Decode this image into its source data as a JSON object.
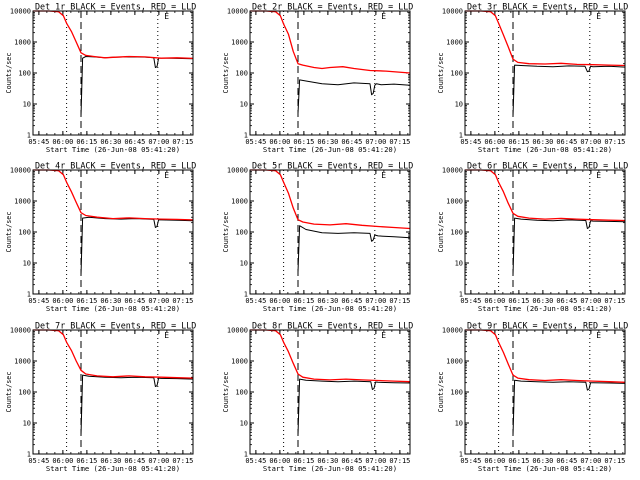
{
  "figure": {
    "x_tick_labels": [
      "05:45",
      "06:00",
      "06:15",
      "06:30",
      "06:45",
      "07:00",
      "07:15"
    ],
    "y_tick_labels": [
      "1",
      "10",
      "100",
      "1000",
      "10000"
    ],
    "xlabel": "Start Time (26-Jun-08 05:41:20)",
    "ylabel": "Counts/sec",
    "flag_label": "E",
    "colors": {
      "events": "#000000",
      "lld": "#ff0000",
      "axes": "#000000",
      "background": "#ffffff"
    }
  },
  "chart_data": [
    {
      "type": "line",
      "title": "Det 1r BLACK = Events, RED = LLD",
      "xlabel": "Start Time (26-Jun-08 05:41:20)",
      "ylabel": "Counts/sec",
      "x_unit": "minutes after 05:41:20",
      "xlim": [
        0,
        100
      ],
      "ylim": [
        1,
        10000
      ],
      "yscale": "log",
      "x_ticks": [
        3.67,
        18.67,
        33.67,
        48.67,
        63.67,
        78.67,
        93.67
      ],
      "vlines": [
        {
          "x": 21,
          "style": "dotted"
        },
        {
          "x": 30,
          "style": "dashed"
        },
        {
          "x": 78,
          "style": "dotted"
        }
      ],
      "flag_x": 82,
      "series": [
        {
          "name": "Events",
          "color": "#000000",
          "x": [
            30,
            31,
            33,
            38,
            45,
            50,
            60,
            70,
            75.5,
            76.5,
            77.5,
            78.5,
            80,
            90,
            100
          ],
          "y": [
            4,
            300,
            340,
            330,
            310,
            320,
            330,
            325,
            310,
            150,
            160,
            300,
            305,
            295,
            290
          ]
        },
        {
          "name": "LLD",
          "color": "#ff0000",
          "x": [
            0,
            10,
            16,
            19,
            21,
            24,
            27,
            30,
            33,
            38,
            45,
            50,
            60,
            70,
            80,
            90,
            100
          ],
          "y": [
            10000,
            10000,
            9500,
            7000,
            4000,
            2200,
            1000,
            450,
            370,
            340,
            310,
            320,
            340,
            330,
            300,
            310,
            295
          ]
        }
      ]
    },
    {
      "type": "line",
      "title": "Det 2r BLACK = Events, RED = LLD",
      "xlabel": "Start Time (26-Jun-08 05:41:20)",
      "ylabel": "Counts/sec",
      "x_unit": "minutes after 05:41:20",
      "xlim": [
        0,
        100
      ],
      "ylim": [
        1,
        10000
      ],
      "yscale": "log",
      "x_ticks": [
        3.67,
        18.67,
        33.67,
        48.67,
        63.67,
        78.67,
        93.67
      ],
      "vlines": [
        {
          "x": 21,
          "style": "dotted"
        },
        {
          "x": 30,
          "style": "dashed"
        },
        {
          "x": 78,
          "style": "dotted"
        }
      ],
      "flag_x": 82,
      "series": [
        {
          "name": "Events",
          "color": "#000000",
          "x": [
            30,
            31,
            35,
            45,
            55,
            65,
            75,
            76,
            77,
            78,
            79,
            82,
            90,
            100
          ],
          "y": [
            5,
            60,
            55,
            45,
            42,
            48,
            45,
            20,
            22,
            40,
            45,
            42,
            44,
            40
          ]
        },
        {
          "name": "LLD",
          "color": "#ff0000",
          "x": [
            0,
            10,
            16,
            19,
            21,
            24,
            27,
            30,
            33,
            40,
            45,
            50,
            58,
            65,
            75,
            85,
            100
          ],
          "y": [
            10000,
            10000,
            9500,
            7000,
            3800,
            1800,
            500,
            200,
            180,
            150,
            140,
            150,
            160,
            140,
            120,
            115,
            100
          ]
        }
      ]
    },
    {
      "type": "line",
      "title": "Det 3r BLACK = Events, RED = LLD",
      "xlabel": "Start Time (26-Jun-08 05:41:20)",
      "ylabel": "Counts/sec",
      "x_unit": "minutes after 05:41:20",
      "xlim": [
        0,
        100
      ],
      "ylim": [
        1,
        10000
      ],
      "yscale": "log",
      "x_ticks": [
        3.67,
        18.67,
        33.67,
        48.67,
        63.67,
        78.67,
        93.67
      ],
      "vlines": [
        {
          "x": 21,
          "style": "dotted"
        },
        {
          "x": 30,
          "style": "dashed"
        },
        {
          "x": 78,
          "style": "dotted"
        }
      ],
      "flag_x": 82,
      "series": [
        {
          "name": "Events",
          "color": "#000000",
          "x": [
            30,
            31,
            35,
            45,
            55,
            65,
            75,
            76.5,
            77.5,
            78.5,
            80,
            90,
            100
          ],
          "y": [
            4,
            180,
            175,
            165,
            160,
            170,
            165,
            110,
            115,
            165,
            160,
            165,
            155
          ]
        },
        {
          "name": "LLD",
          "color": "#ff0000",
          "x": [
            0,
            10,
            16,
            19,
            21,
            24,
            27,
            30,
            33,
            40,
            50,
            60,
            70,
            80,
            90,
            100
          ],
          "y": [
            10000,
            10000,
            9500,
            7000,
            4000,
            1700,
            700,
            280,
            220,
            200,
            195,
            205,
            190,
            185,
            180,
            175
          ]
        }
      ]
    },
    {
      "type": "line",
      "title": "Det 4r BLACK = Events, RED = LLD",
      "xlabel": "Start Time (26-Jun-08 05:41:20)",
      "ylabel": "Counts/sec",
      "x_unit": "minutes after 05:41:20",
      "xlim": [
        0,
        100
      ],
      "ylim": [
        1,
        10000
      ],
      "yscale": "log",
      "x_ticks": [
        3.67,
        18.67,
        33.67,
        48.67,
        63.67,
        78.67,
        93.67
      ],
      "vlines": [
        {
          "x": 21,
          "style": "dotted"
        },
        {
          "x": 30,
          "style": "dashed"
        },
        {
          "x": 78,
          "style": "dotted"
        }
      ],
      "flag_x": 82,
      "series": [
        {
          "name": "Events",
          "color": "#000000",
          "x": [
            30,
            31,
            35,
            45,
            55,
            65,
            75.5,
            76.5,
            77.5,
            78.5,
            80,
            90,
            100
          ],
          "y": [
            4,
            280,
            300,
            270,
            260,
            270,
            255,
            140,
            150,
            250,
            245,
            240,
            230
          ]
        },
        {
          "name": "LLD",
          "color": "#ff0000",
          "x": [
            0,
            10,
            16,
            19,
            21,
            24,
            27,
            30,
            33,
            40,
            50,
            60,
            70,
            80,
            90,
            100
          ],
          "y": [
            10000,
            10000,
            9500,
            7000,
            4000,
            2000,
            900,
            420,
            340,
            300,
            270,
            285,
            270,
            260,
            255,
            245
          ]
        }
      ]
    },
    {
      "type": "line",
      "title": "Det 5r BLACK = Events, RED = LLD",
      "xlabel": "Start Time (26-Jun-08 05:41:20)",
      "ylabel": "Counts/sec",
      "x_unit": "minutes after 05:41:20",
      "xlim": [
        0,
        100
      ],
      "ylim": [
        1,
        10000
      ],
      "yscale": "log",
      "x_ticks": [
        3.67,
        18.67,
        33.67,
        48.67,
        63.67,
        78.67,
        93.67
      ],
      "vlines": [
        {
          "x": 21,
          "style": "dotted"
        },
        {
          "x": 30,
          "style": "dashed"
        },
        {
          "x": 78,
          "style": "dotted"
        }
      ],
      "flag_x": 82,
      "series": [
        {
          "name": "Events",
          "color": "#000000",
          "x": [
            30,
            31,
            35,
            45,
            55,
            65,
            75,
            76,
            77,
            78,
            80,
            90,
            100
          ],
          "y": [
            5,
            160,
            120,
            95,
            90,
            95,
            90,
            50,
            55,
            80,
            75,
            70,
            65
          ]
        },
        {
          "name": "LLD",
          "color": "#ff0000",
          "x": [
            0,
            10,
            16,
            19,
            21,
            24,
            27,
            30,
            33,
            40,
            50,
            60,
            70,
            80,
            90,
            100
          ],
          "y": [
            10000,
            10000,
            9500,
            7000,
            4000,
            1800,
            600,
            250,
            210,
            180,
            170,
            185,
            165,
            150,
            140,
            130
          ]
        }
      ]
    },
    {
      "type": "line",
      "title": "Det 6r BLACK = Events, RED = LLD",
      "xlabel": "Start Time (26-Jun-08 05:41:20)",
      "ylabel": "Counts/sec",
      "x_unit": "minutes after 05:41:20",
      "xlim": [
        0,
        100
      ],
      "ylim": [
        1,
        10000
      ],
      "yscale": "log",
      "x_ticks": [
        3.67,
        18.67,
        33.67,
        48.67,
        63.67,
        78.67,
        93.67
      ],
      "vlines": [
        {
          "x": 21,
          "style": "dotted"
        },
        {
          "x": 30,
          "style": "dashed"
        },
        {
          "x": 78,
          "style": "dotted"
        }
      ],
      "flag_x": 82,
      "series": [
        {
          "name": "Events",
          "color": "#000000",
          "x": [
            30,
            31,
            35,
            45,
            55,
            65,
            75.5,
            76.5,
            77.5,
            78.5,
            80,
            90,
            100
          ],
          "y": [
            4,
            280,
            260,
            240,
            230,
            245,
            235,
            130,
            140,
            230,
            225,
            220,
            215
          ]
        },
        {
          "name": "LLD",
          "color": "#ff0000",
          "x": [
            0,
            10,
            16,
            19,
            21,
            24,
            27,
            30,
            33,
            40,
            50,
            60,
            70,
            80,
            90,
            100
          ],
          "y": [
            10000,
            10000,
            9500,
            7000,
            4000,
            2000,
            850,
            400,
            320,
            280,
            260,
            275,
            260,
            250,
            240,
            235
          ]
        }
      ]
    },
    {
      "type": "line",
      "title": "Det 7r BLACK = Events, RED = LLD",
      "xlabel": "Start Time (26-Jun-08 05:41:20)",
      "ylabel": "Counts/sec",
      "x_unit": "minutes after 05:41:20",
      "xlim": [
        0,
        100
      ],
      "ylim": [
        1,
        10000
      ],
      "yscale": "log",
      "x_ticks": [
        3.67,
        18.67,
        33.67,
        48.67,
        63.67,
        78.67,
        93.67
      ],
      "vlines": [
        {
          "x": 21,
          "style": "dotted"
        },
        {
          "x": 30,
          "style": "dashed"
        },
        {
          "x": 78,
          "style": "dotted"
        }
      ],
      "flag_x": 82,
      "series": [
        {
          "name": "Events",
          "color": "#000000",
          "x": [
            30,
            31,
            35,
            45,
            55,
            65,
            75.5,
            76.5,
            77.5,
            78.5,
            80,
            90,
            100
          ],
          "y": [
            4,
            350,
            320,
            300,
            290,
            300,
            290,
            150,
            160,
            280,
            275,
            270,
            260
          ]
        },
        {
          "name": "LLD",
          "color": "#ff0000",
          "x": [
            0,
            10,
            16,
            19,
            21,
            24,
            27,
            30,
            33,
            40,
            50,
            60,
            70,
            80,
            90,
            100
          ],
          "y": [
            10000,
            10000,
            9500,
            7000,
            4000,
            2200,
            1000,
            500,
            380,
            330,
            310,
            330,
            310,
            300,
            290,
            280
          ]
        }
      ]
    },
    {
      "type": "line",
      "title": "Det 8r BLACK = Events, RED = LLD",
      "xlabel": "Start Time (26-Jun-08 05:41:20)",
      "ylabel": "Counts/sec",
      "x_unit": "minutes after 05:41:20",
      "xlim": [
        0,
        100
      ],
      "ylim": [
        1,
        10000
      ],
      "yscale": "log",
      "x_ticks": [
        3.67,
        18.67,
        33.67,
        48.67,
        63.67,
        78.67,
        93.67
      ],
      "vlines": [
        {
          "x": 21,
          "style": "dotted"
        },
        {
          "x": 30,
          "style": "dashed"
        },
        {
          "x": 78,
          "style": "dotted"
        }
      ],
      "flag_x": 82,
      "series": [
        {
          "name": "Events",
          "color": "#000000",
          "x": [
            30,
            31,
            35,
            45,
            55,
            65,
            75.5,
            76.5,
            77.5,
            78.5,
            80,
            90,
            100
          ],
          "y": [
            4,
            260,
            240,
            225,
            215,
            225,
            215,
            120,
            130,
            210,
            205,
            200,
            195
          ]
        },
        {
          "name": "LLD",
          "color": "#ff0000",
          "x": [
            0,
            10,
            16,
            19,
            21,
            24,
            27,
            30,
            33,
            40,
            50,
            60,
            70,
            80,
            90,
            100
          ],
          "y": [
            10000,
            10000,
            9500,
            7000,
            4000,
            2000,
            850,
            380,
            300,
            260,
            245,
            260,
            245,
            235,
            225,
            215
          ]
        }
      ]
    },
    {
      "type": "line",
      "title": "Det 9r BLACK = Events, RED = LLD",
      "xlabel": "Start Time (26-Jun-08 05:41:20)",
      "ylabel": "Counts/sec",
      "x_unit": "minutes after 05:41:20",
      "xlim": [
        0,
        100
      ],
      "ylim": [
        1,
        10000
      ],
      "yscale": "log",
      "x_ticks": [
        3.67,
        18.67,
        33.67,
        48.67,
        63.67,
        78.67,
        93.67
      ],
      "vlines": [
        {
          "x": 21,
          "style": "dotted"
        },
        {
          "x": 30,
          "style": "dashed"
        },
        {
          "x": 78,
          "style": "dotted"
        }
      ],
      "flag_x": 82,
      "series": [
        {
          "name": "Events",
          "color": "#000000",
          "x": [
            30,
            31,
            35,
            45,
            55,
            65,
            75.5,
            76.5,
            77.5,
            78.5,
            80,
            90,
            100
          ],
          "y": [
            4,
            240,
            225,
            215,
            205,
            215,
            205,
            115,
            125,
            200,
            200,
            195,
            190
          ]
        },
        {
          "name": "LLD",
          "color": "#ff0000",
          "x": [
            0,
            10,
            16,
            19,
            21,
            24,
            27,
            30,
            33,
            40,
            50,
            60,
            70,
            80,
            90,
            100
          ],
          "y": [
            10000,
            10000,
            9500,
            7000,
            4000,
            1900,
            800,
            350,
            280,
            250,
            235,
            250,
            235,
            225,
            215,
            205
          ]
        }
      ]
    }
  ]
}
